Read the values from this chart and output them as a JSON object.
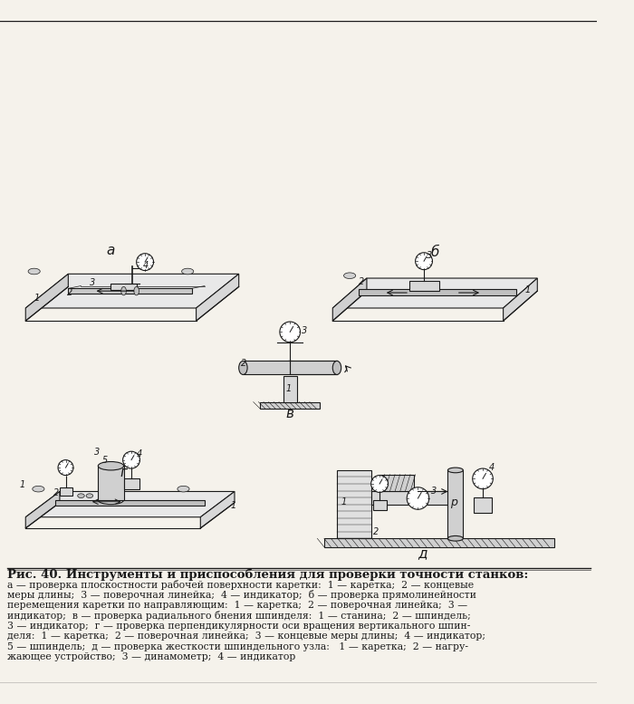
{
  "title": "Рис. 40. Инструменты и приспособления для проверки точности станков:",
  "caption_lines": [
    "а — проверка плоскостности рабочей поверхности каретки:  1 — каретка;  2 — концевые",
    "меры длины;  3 — поверочная линейка;  4 — индикатор;  б — проверка прямолинейности",
    "перемещения каретки по направляющим:  1 — каретка;  2 — поверочная линейка;  3 —",
    "индикатор;  в — проверка радиального бнения шпинделя:  1 — станина;  2 — шпиндель;",
    "3 — индикатор;  г — проверка перпендикулярности оси вращения вертикального шпин-",
    "деля:  1 — каретка;  2 — поверочная линейка;  3 — концевые меры длины;  4 — индикатор;",
    "5 — шпиндель;  д — проверка жесткости шпиндельного узла:   1 — каретка;  2 — нагру-",
    "жающее устройство;  3 — динамометр;  4 — индикатор"
  ],
  "bg_color": "#f5f2eb",
  "text_color": "#1a1a1a",
  "label_a": "а",
  "label_b": "б",
  "label_v": "в",
  "label_g": "г",
  "label_d": "д"
}
